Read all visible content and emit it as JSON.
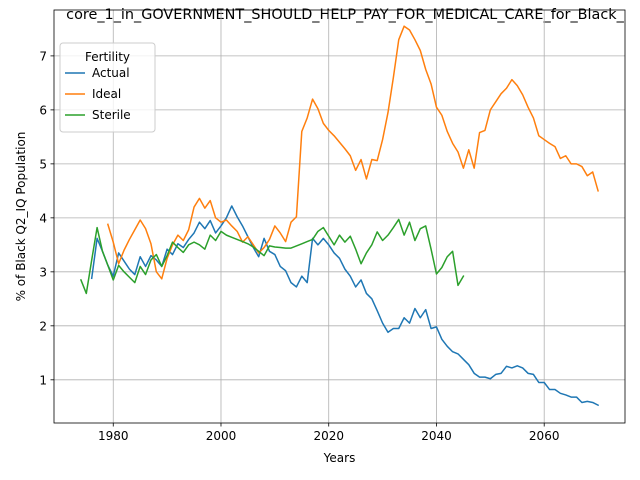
{
  "chart_data": {
    "type": "line",
    "title": "core_1_in_GOVERNMENT_SHOULD_HELP_PAY_FOR_MEDICAL_CARE_for_Black_",
    "xlabel": "Years",
    "ylabel": "% of Black Q2_IQ Population",
    "xlim": [
      1969,
      2075
    ],
    "ylim": [
      0.2,
      7.85
    ],
    "xticks": [
      1980,
      2000,
      2020,
      2040,
      2060
    ],
    "yticks": [
      1,
      2,
      3,
      4,
      5,
      6,
      7
    ],
    "grid": true,
    "legend": {
      "title": "Fertility",
      "position": "top-left"
    },
    "series": [
      {
        "name": "Actual",
        "color": "#1f77b4",
        "points": [
          [
            1976,
            2.88
          ],
          [
            1977,
            3.62
          ],
          [
            1978,
            3.38
          ],
          [
            1979,
            3.12
          ],
          [
            1980,
            2.92
          ],
          [
            1981,
            3.35
          ],
          [
            1982,
            3.2
          ],
          [
            1983,
            3.05
          ],
          [
            1984,
            2.95
          ],
          [
            1985,
            3.28
          ],
          [
            1986,
            3.1
          ],
          [
            1987,
            3.3
          ],
          [
            1988,
            3.22
          ],
          [
            1989,
            3.1
          ],
          [
            1990,
            3.42
          ],
          [
            1991,
            3.32
          ],
          [
            1992,
            3.52
          ],
          [
            1993,
            3.45
          ],
          [
            1994,
            3.6
          ],
          [
            1995,
            3.72
          ],
          [
            1996,
            3.92
          ],
          [
            1997,
            3.8
          ],
          [
            1998,
            3.95
          ],
          [
            1999,
            3.72
          ],
          [
            2000,
            3.85
          ],
          [
            2001,
            4.0
          ],
          [
            2002,
            4.22
          ],
          [
            2003,
            4.02
          ],
          [
            2004,
            3.85
          ],
          [
            2005,
            3.65
          ],
          [
            2006,
            3.45
          ],
          [
            2007,
            3.28
          ],
          [
            2008,
            3.62
          ],
          [
            2009,
            3.38
          ],
          [
            2010,
            3.32
          ],
          [
            2011,
            3.1
          ],
          [
            2012,
            3.02
          ],
          [
            2013,
            2.8
          ],
          [
            2014,
            2.72
          ],
          [
            2015,
            2.92
          ],
          [
            2016,
            2.8
          ],
          [
            2017,
            3.62
          ],
          [
            2018,
            3.5
          ],
          [
            2019,
            3.62
          ],
          [
            2020,
            3.5
          ],
          [
            2021,
            3.35
          ],
          [
            2022,
            3.25
          ],
          [
            2023,
            3.05
          ],
          [
            2024,
            2.92
          ],
          [
            2025,
            2.72
          ],
          [
            2026,
            2.85
          ],
          [
            2027,
            2.6
          ],
          [
            2028,
            2.5
          ],
          [
            2029,
            2.28
          ],
          [
            2030,
            2.05
          ],
          [
            2031,
            1.88
          ],
          [
            2032,
            1.95
          ],
          [
            2033,
            1.95
          ],
          [
            2034,
            2.15
          ],
          [
            2035,
            2.05
          ],
          [
            2036,
            2.32
          ],
          [
            2037,
            2.15
          ],
          [
            2038,
            2.3
          ],
          [
            2039,
            1.95
          ],
          [
            2040,
            1.98
          ],
          [
            2041,
            1.75
          ],
          [
            2042,
            1.62
          ],
          [
            2043,
            1.52
          ],
          [
            2044,
            1.48
          ],
          [
            2045,
            1.38
          ],
          [
            2046,
            1.28
          ],
          [
            2047,
            1.12
          ],
          [
            2048,
            1.05
          ],
          [
            2049,
            1.05
          ],
          [
            2050,
            1.02
          ],
          [
            2051,
            1.1
          ],
          [
            2052,
            1.12
          ],
          [
            2053,
            1.25
          ],
          [
            2054,
            1.22
          ],
          [
            2055,
            1.26
          ],
          [
            2056,
            1.22
          ],
          [
            2057,
            1.12
          ],
          [
            2058,
            1.1
          ],
          [
            2059,
            0.95
          ],
          [
            2060,
            0.95
          ],
          [
            2061,
            0.82
          ],
          [
            2062,
            0.82
          ],
          [
            2063,
            0.75
          ],
          [
            2064,
            0.72
          ],
          [
            2065,
            0.68
          ],
          [
            2066,
            0.68
          ],
          [
            2067,
            0.58
          ],
          [
            2068,
            0.6
          ],
          [
            2069,
            0.58
          ],
          [
            2070,
            0.53
          ]
        ]
      },
      {
        "name": "Ideal",
        "color": "#ff7f0e",
        "points": [
          [
            1979,
            3.88
          ],
          [
            1980,
            3.55
          ],
          [
            1981,
            3.15
          ],
          [
            1982,
            3.4
          ],
          [
            1983,
            3.6
          ],
          [
            1984,
            3.78
          ],
          [
            1985,
            3.96
          ],
          [
            1986,
            3.8
          ],
          [
            1987,
            3.52
          ],
          [
            1988,
            3.0
          ],
          [
            1989,
            2.87
          ],
          [
            1990,
            3.25
          ],
          [
            1991,
            3.5
          ],
          [
            1992,
            3.68
          ],
          [
            1993,
            3.58
          ],
          [
            1994,
            3.78
          ],
          [
            1995,
            4.2
          ],
          [
            1996,
            4.36
          ],
          [
            1997,
            4.18
          ],
          [
            1998,
            4.32
          ],
          [
            1999,
            4.0
          ],
          [
            2000,
            3.92
          ],
          [
            2001,
            3.96
          ],
          [
            2002,
            3.85
          ],
          [
            2003,
            3.75
          ],
          [
            2004,
            3.55
          ],
          [
            2005,
            3.65
          ],
          [
            2006,
            3.5
          ],
          [
            2007,
            3.35
          ],
          [
            2008,
            3.45
          ],
          [
            2009,
            3.6
          ],
          [
            2010,
            3.85
          ],
          [
            2011,
            3.72
          ],
          [
            2012,
            3.56
          ],
          [
            2013,
            3.92
          ],
          [
            2014,
            4.02
          ],
          [
            2015,
            5.6
          ],
          [
            2016,
            5.85
          ],
          [
            2017,
            6.2
          ],
          [
            2018,
            6.02
          ],
          [
            2019,
            5.75
          ],
          [
            2020,
            5.62
          ],
          [
            2021,
            5.52
          ],
          [
            2022,
            5.4
          ],
          [
            2023,
            5.28
          ],
          [
            2024,
            5.15
          ],
          [
            2025,
            4.88
          ],
          [
            2026,
            5.08
          ],
          [
            2027,
            4.72
          ],
          [
            2028,
            5.08
          ],
          [
            2029,
            5.06
          ],
          [
            2030,
            5.45
          ],
          [
            2031,
            5.95
          ],
          [
            2032,
            6.6
          ],
          [
            2033,
            7.3
          ],
          [
            2034,
            7.55
          ],
          [
            2035,
            7.48
          ],
          [
            2036,
            7.3
          ],
          [
            2037,
            7.1
          ],
          [
            2038,
            6.75
          ],
          [
            2039,
            6.48
          ],
          [
            2040,
            6.05
          ],
          [
            2041,
            5.9
          ],
          [
            2042,
            5.6
          ],
          [
            2043,
            5.38
          ],
          [
            2044,
            5.22
          ],
          [
            2045,
            4.92
          ],
          [
            2046,
            5.26
          ],
          [
            2047,
            4.92
          ],
          [
            2048,
            5.58
          ],
          [
            2049,
            5.62
          ],
          [
            2050,
            6.0
          ],
          [
            2051,
            6.15
          ],
          [
            2052,
            6.3
          ],
          [
            2053,
            6.4
          ],
          [
            2054,
            6.56
          ],
          [
            2055,
            6.45
          ],
          [
            2056,
            6.28
          ],
          [
            2057,
            6.05
          ],
          [
            2058,
            5.85
          ],
          [
            2059,
            5.52
          ],
          [
            2060,
            5.45
          ],
          [
            2061,
            5.38
          ],
          [
            2062,
            5.32
          ],
          [
            2063,
            5.1
          ],
          [
            2064,
            5.15
          ],
          [
            2065,
            5.0
          ],
          [
            2066,
            5.0
          ],
          [
            2067,
            4.95
          ],
          [
            2068,
            4.78
          ],
          [
            2069,
            4.85
          ],
          [
            2070,
            4.5
          ]
        ]
      },
      {
        "name": "Sterile",
        "color": "#2ca02c",
        "points": [
          [
            1974,
            2.85
          ],
          [
            1975,
            2.6
          ],
          [
            1976,
            3.22
          ],
          [
            1977,
            3.82
          ],
          [
            1978,
            3.38
          ],
          [
            1979,
            3.12
          ],
          [
            1980,
            2.85
          ],
          [
            1981,
            3.12
          ],
          [
            1982,
            3.0
          ],
          [
            1983,
            2.9
          ],
          [
            1984,
            2.8
          ],
          [
            1985,
            3.1
          ],
          [
            1986,
            2.95
          ],
          [
            1987,
            3.22
          ],
          [
            1988,
            3.32
          ],
          [
            1989,
            3.1
          ],
          [
            1990,
            3.3
          ],
          [
            1991,
            3.55
          ],
          [
            1992,
            3.45
          ],
          [
            1993,
            3.36
          ],
          [
            1994,
            3.5
          ],
          [
            1995,
            3.55
          ],
          [
            1996,
            3.5
          ],
          [
            1997,
            3.42
          ],
          [
            1998,
            3.68
          ],
          [
            1999,
            3.58
          ],
          [
            2000,
            3.75
          ],
          [
            2001,
            3.68
          ],
          [
            2002,
            3.64
          ],
          [
            2003,
            3.6
          ],
          [
            2004,
            3.56
          ],
          [
            2005,
            3.52
          ],
          [
            2006,
            3.46
          ],
          [
            2007,
            3.38
          ],
          [
            2008,
            3.3
          ],
          [
            2009,
            3.48
          ],
          [
            2010,
            3.46
          ],
          [
            2011,
            3.45
          ],
          [
            2012,
            3.44
          ],
          [
            2013,
            3.44
          ],
          [
            2014,
            3.48
          ],
          [
            2015,
            3.52
          ],
          [
            2016,
            3.56
          ],
          [
            2017,
            3.6
          ],
          [
            2018,
            3.75
          ],
          [
            2019,
            3.82
          ],
          [
            2020,
            3.66
          ],
          [
            2021,
            3.5
          ],
          [
            2022,
            3.68
          ],
          [
            2023,
            3.55
          ],
          [
            2024,
            3.66
          ],
          [
            2025,
            3.42
          ],
          [
            2026,
            3.15
          ],
          [
            2027,
            3.35
          ],
          [
            2028,
            3.5
          ],
          [
            2029,
            3.74
          ],
          [
            2030,
            3.58
          ],
          [
            2031,
            3.68
          ],
          [
            2032,
            3.82
          ],
          [
            2033,
            3.97
          ],
          [
            2034,
            3.68
          ],
          [
            2035,
            3.92
          ],
          [
            2036,
            3.58
          ],
          [
            2037,
            3.8
          ],
          [
            2038,
            3.85
          ],
          [
            2039,
            3.42
          ],
          [
            2040,
            2.96
          ],
          [
            2041,
            3.08
          ],
          [
            2042,
            3.28
          ],
          [
            2043,
            3.38
          ],
          [
            2044,
            2.75
          ],
          [
            2045,
            2.92
          ]
        ]
      }
    ]
  }
}
